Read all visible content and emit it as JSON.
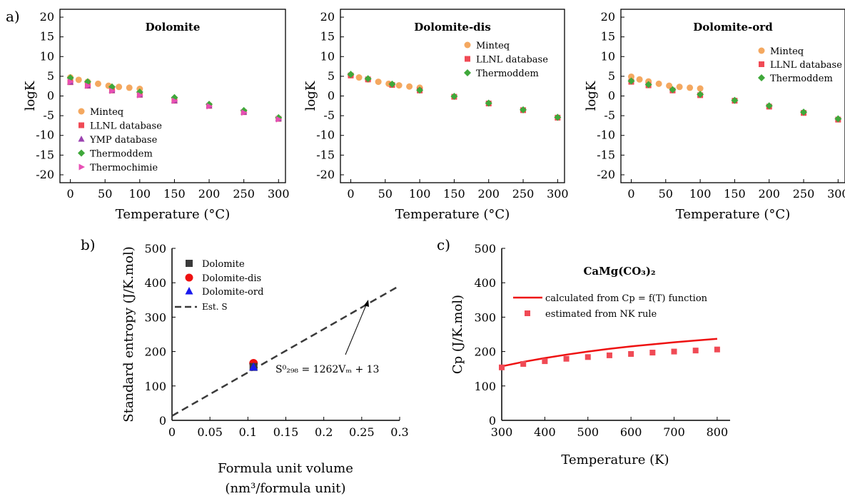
{
  "panel_labels": [
    "a)",
    "b)",
    "c)"
  ],
  "chart_data": [
    {
      "type": "scatter",
      "title": "Dolomite",
      "xlabel": "Temperature (°C)",
      "ylabel": "logK",
      "xlim": [
        -15,
        310
      ],
      "ylim": [
        -22,
        22
      ],
      "xticks": [
        0,
        50,
        100,
        150,
        200,
        250,
        300
      ],
      "yticks": [
        20,
        15,
        10,
        5,
        0,
        -5,
        -10,
        -15,
        -20
      ],
      "legend_position": "lower-left",
      "series": [
        {
          "name": "Minteq",
          "marker": "circle",
          "color": "#f4a860",
          "x": [
            0,
            12,
            25,
            40,
            55,
            70,
            85,
            100
          ],
          "y": [
            4.7,
            4.1,
            3.6,
            3.1,
            2.6,
            2.3,
            2.1,
            1.8
          ]
        },
        {
          "name": "LLNL database",
          "marker": "square",
          "color": "#f04a55",
          "x": [
            0,
            25,
            60,
            100,
            150,
            200,
            250,
            300
          ],
          "y": [
            3.5,
            2.6,
            1.4,
            0.3,
            -1.2,
            -2.5,
            -4.1,
            -5.8
          ]
        },
        {
          "name": "YMP database",
          "marker": "triangle-up",
          "color": "#9b42b0",
          "x": [
            0,
            25,
            60,
            100,
            150,
            200,
            250,
            300
          ],
          "y": [
            3.5,
            2.6,
            1.4,
            0.3,
            -1.2,
            -2.5,
            -4.1,
            -5.8
          ]
        },
        {
          "name": "Thermoddem",
          "marker": "diamond",
          "color": "#3fa83a",
          "x": [
            0,
            25,
            60,
            100,
            150,
            200,
            250,
            300
          ],
          "y": [
            4.6,
            3.6,
            2.3,
            1.0,
            -0.4,
            -2.1,
            -3.7,
            -5.5
          ]
        },
        {
          "name": "Thermochimie",
          "marker": "triangle-right",
          "color": "#e84fb5",
          "x": [
            0,
            25,
            60,
            100,
            150,
            200,
            250,
            300
          ],
          "y": [
            3.6,
            2.6,
            1.3,
            0.2,
            -1.2,
            -2.6,
            -4.2,
            -5.9
          ]
        }
      ]
    },
    {
      "type": "scatter",
      "title": "Dolomite-dis",
      "xlabel": "Temperature (°C)",
      "ylabel": "logK",
      "xlim": [
        -15,
        310
      ],
      "ylim": [
        -22,
        22
      ],
      "xticks": [
        0,
        50,
        100,
        150,
        200,
        250,
        300
      ],
      "yticks": [
        20,
        15,
        10,
        5,
        0,
        -5,
        -10,
        -15,
        -20
      ],
      "legend_position": "top-right",
      "series": [
        {
          "name": "Minteq",
          "marker": "circle",
          "color": "#f4a860",
          "x": [
            0,
            12,
            25,
            40,
            55,
            70,
            85,
            100
          ],
          "y": [
            5.3,
            4.7,
            4.2,
            3.6,
            3.1,
            2.7,
            2.4,
            2.1
          ]
        },
        {
          "name": "LLNL database",
          "marker": "square",
          "color": "#f04a55",
          "x": [
            0,
            25,
            60,
            100,
            150,
            200,
            250,
            300
          ],
          "y": [
            5.2,
            4.2,
            2.8,
            1.4,
            -0.2,
            -1.9,
            -3.6,
            -5.5
          ]
        },
        {
          "name": "Thermoddem",
          "marker": "diamond",
          "color": "#3fa83a",
          "x": [
            0,
            25,
            60,
            100,
            150,
            200,
            250,
            300
          ],
          "y": [
            5.5,
            4.4,
            3.0,
            1.5,
            -0.1,
            -1.8,
            -3.5,
            -5.4
          ]
        }
      ]
    },
    {
      "type": "scatter",
      "title": "Dolomite-ord",
      "xlabel": "Temperature (°C)",
      "ylabel": "logK",
      "xlim": [
        -15,
        310
      ],
      "ylim": [
        -22,
        22
      ],
      "xticks": [
        0,
        50,
        100,
        150,
        200,
        250,
        300
      ],
      "yticks": [
        20,
        15,
        10,
        5,
        0,
        -5,
        -10,
        -15,
        -20
      ],
      "legend_position": "top-right",
      "series": [
        {
          "name": "Minteq",
          "marker": "circle",
          "color": "#f4a860",
          "x": [
            0,
            12,
            25,
            40,
            55,
            70,
            85,
            100
          ],
          "y": [
            4.9,
            4.2,
            3.7,
            3.1,
            2.6,
            2.3,
            2.1,
            1.9
          ]
        },
        {
          "name": "LLNL database",
          "marker": "square",
          "color": "#f04a55",
          "x": [
            0,
            25,
            60,
            100,
            150,
            200,
            250,
            300
          ],
          "y": [
            3.6,
            2.7,
            1.4,
            0.2,
            -1.2,
            -2.7,
            -4.3,
            -6.0
          ]
        },
        {
          "name": "Thermoddem",
          "marker": "diamond",
          "color": "#3fa83a",
          "x": [
            0,
            25,
            60,
            100,
            150,
            200,
            250,
            300
          ],
          "y": [
            3.8,
            2.9,
            1.6,
            0.4,
            -1.1,
            -2.5,
            -4.1,
            -5.8
          ]
        }
      ]
    },
    {
      "type": "scatter",
      "xlabel_line1": "Formula unit volume",
      "xlabel_line2": "(nm³/formula unit)",
      "ylabel": "Standard entropy (J/K.mol)",
      "xlim": [
        0,
        0.3
      ],
      "ylim": [
        0,
        500
      ],
      "xticks": [
        "0",
        "0.05",
        "0.1",
        "0.15",
        "0.2",
        "0.25",
        "0.3"
      ],
      "yticks": [
        0,
        100,
        200,
        300,
        400,
        500
      ],
      "legend_position": "top-left",
      "annotation": "S⁰₂₉₈ = 1262Vₘ + 13",
      "series": [
        {
          "name": "Dolomite",
          "marker": "square",
          "color": "#3a3a3a",
          "x": [
            0.1074
          ],
          "y": [
            155.2
          ]
        },
        {
          "name": "Dolomite-dis",
          "marker": "circle",
          "color": "#ee1111",
          "x": [
            0.1074
          ],
          "y": [
            166
          ]
        },
        {
          "name": "Dolomite-ord",
          "marker": "triangle-up",
          "color": "#1a1aee",
          "x": [
            0.1074
          ],
          "y": [
            155
          ]
        },
        {
          "name": "Est. S",
          "marker": "dashed-line",
          "color": "#3a3a3a",
          "x": [
            0,
            0.3
          ],
          "y": [
            13,
            391.6
          ]
        }
      ]
    },
    {
      "type": "line",
      "title": "CaMg(CO₃)₂",
      "xlabel": "Temperature (K)",
      "ylabel": "Cp (J/K.mol)",
      "xlim": [
        300,
        830
      ],
      "ylim": [
        0,
        500
      ],
      "xticks": [
        300,
        400,
        500,
        600,
        700,
        800
      ],
      "yticks": [
        0,
        100,
        200,
        300,
        400,
        500
      ],
      "legend_position": "upper-center",
      "series": [
        {
          "name": "calculated from Cp = f(T) function",
          "marker": "line",
          "color": "#ee1111",
          "x": [
            300,
            350,
            400,
            450,
            500,
            550,
            600,
            650,
            700,
            750,
            800
          ],
          "y": [
            157,
            170,
            181,
            191,
            200,
            208,
            215,
            221,
            227,
            232,
            237
          ]
        },
        {
          "name": "estimated from NK rule",
          "marker": "square",
          "color": "#f04a55",
          "x": [
            300,
            350,
            400,
            450,
            500,
            550,
            600,
            650,
            700,
            750,
            800
          ],
          "y": [
            154,
            164,
            172,
            179,
            184,
            189,
            193,
            197,
            200,
            203,
            206
          ]
        }
      ]
    }
  ]
}
